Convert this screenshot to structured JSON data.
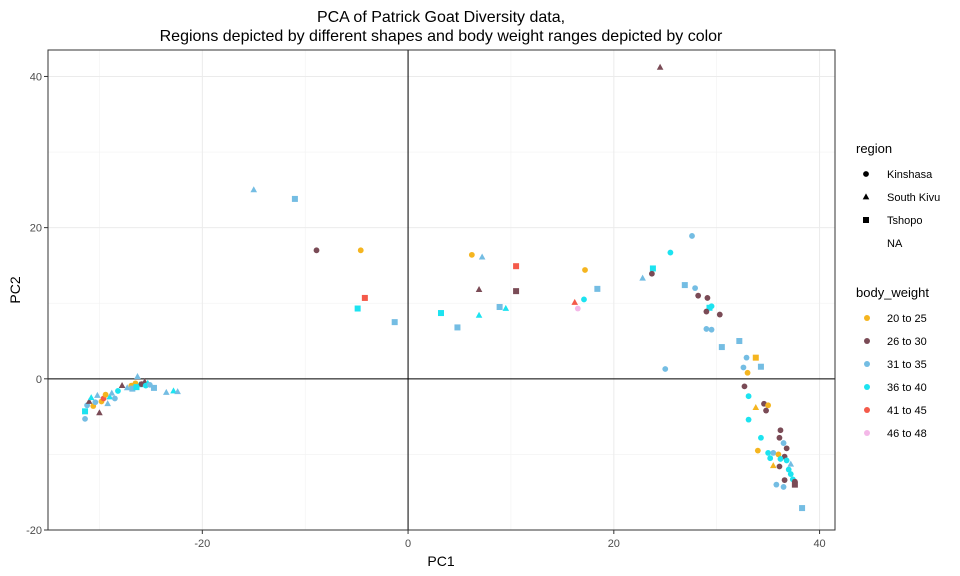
{
  "chart_data": {
    "type": "scatter",
    "title_line1": "PCA of Patrick Goat Diversity data,",
    "title_line2": "Regions depicted by different shapes and body weight ranges depicted by color",
    "xlabel": "PC1",
    "ylabel": "PC2",
    "xlim": [
      -35,
      41.5
    ],
    "ylim": [
      -20,
      43.5
    ],
    "x_ticks": [
      -20,
      0,
      20,
      40
    ],
    "y_ticks": [
      -20,
      0,
      20,
      40
    ],
    "x_tick_labels": [
      "-20",
      "0",
      "20",
      "40"
    ],
    "y_tick_labels": [
      "-20",
      "0",
      "20",
      "40"
    ],
    "grid": true,
    "reference_lines": {
      "x": 0,
      "y": 0
    },
    "legend_position": "right",
    "legend_region": {
      "title": "region",
      "entries": [
        {
          "label": "Kinshasa",
          "shape": "circle"
        },
        {
          "label": "South Kivu",
          "shape": "triangle"
        },
        {
          "label": "Tshopo",
          "shape": "square"
        },
        {
          "label": "NA",
          "shape": "none"
        }
      ]
    },
    "legend_weight": {
      "title": "body_weight",
      "entries": [
        {
          "label": "20 to 25",
          "color": "#f5b51f"
        },
        {
          "label": "26 to 30",
          "color": "#7a4b56"
        },
        {
          "label": "31 to 35",
          "color": "#74bde3"
        },
        {
          "label": "36 to 40",
          "color": "#1ce3f0"
        },
        {
          "label": "41 to 45",
          "color": "#f45a4a"
        },
        {
          "label": "46 to 48",
          "color": "#f4b8e8"
        }
      ]
    },
    "points": [
      [
        24.5,
        41.2,
        "South Kivu",
        "26 to 30"
      ],
      [
        -15,
        25,
        "South Kivu",
        "31 to 35"
      ],
      [
        -11,
        23.8,
        "Tshopo",
        "31 to 35"
      ],
      [
        -8.9,
        17,
        "Kinshasa",
        "26 to 30"
      ],
      [
        -4.6,
        17,
        "Kinshasa",
        "20 to 25"
      ],
      [
        -4.2,
        10.7,
        "Tshopo",
        "41 to 45"
      ],
      [
        -4.9,
        9.3,
        "Tshopo",
        "36 to 40"
      ],
      [
        -1.3,
        7.5,
        "Tshopo",
        "31 to 35"
      ],
      [
        6.2,
        16.4,
        "Kinshasa",
        "20 to 25"
      ],
      [
        7.2,
        16.1,
        "South Kivu",
        "31 to 35"
      ],
      [
        10.5,
        14.9,
        "Tshopo",
        "41 to 45"
      ],
      [
        17.2,
        14.4,
        "Kinshasa",
        "20 to 25"
      ],
      [
        6.9,
        11.8,
        "South Kivu",
        "26 to 30"
      ],
      [
        10.5,
        11.6,
        "Tshopo",
        "26 to 30"
      ],
      [
        18.4,
        11.9,
        "Tshopo",
        "31 to 35"
      ],
      [
        3.2,
        8.7,
        "Tshopo",
        "36 to 40"
      ],
      [
        6.9,
        8.4,
        "South Kivu",
        "36 to 40"
      ],
      [
        8.9,
        9.5,
        "Tshopo",
        "31 to 35"
      ],
      [
        9.5,
        9.3,
        "South Kivu",
        "36 to 40"
      ],
      [
        16.2,
        10.1,
        "South Kivu",
        "41 to 45"
      ],
      [
        16.5,
        9.3,
        "Kinshasa",
        "46 to 48"
      ],
      [
        17.1,
        10.5,
        "Kinshasa",
        "36 to 40"
      ],
      [
        4.8,
        6.8,
        "Tshopo",
        "31 to 35"
      ],
      [
        27.6,
        18.9,
        "Kinshasa",
        "31 to 35"
      ],
      [
        25.5,
        16.7,
        "Kinshasa",
        "36 to 40"
      ],
      [
        23.8,
        14.6,
        "Tshopo",
        "36 to 40"
      ],
      [
        22.8,
        13.3,
        "South Kivu",
        "31 to 35"
      ],
      [
        23.7,
        13.9,
        "Kinshasa",
        "26 to 30"
      ],
      [
        26.9,
        12.4,
        "Tshopo",
        "31 to 35"
      ],
      [
        27.9,
        12,
        "Kinshasa",
        "31 to 35"
      ],
      [
        28.2,
        11,
        "Kinshasa",
        "26 to 30"
      ],
      [
        29.1,
        10.7,
        "Kinshasa",
        "26 to 30"
      ],
      [
        29.3,
        9.4,
        "Tshopo",
        "36 to 40"
      ],
      [
        29.5,
        9.6,
        "Kinshasa",
        "36 to 40"
      ],
      [
        29,
        8.9,
        "Kinshasa",
        "26 to 30"
      ],
      [
        30.3,
        8.5,
        "Kinshasa",
        "26 to 30"
      ],
      [
        29,
        6.6,
        "Kinshasa",
        "31 to 35"
      ],
      [
        29.5,
        6.5,
        "Kinshasa",
        "31 to 35"
      ],
      [
        30.5,
        4.2,
        "Tshopo",
        "31 to 35"
      ],
      [
        32.2,
        5,
        "Tshopo",
        "31 to 35"
      ],
      [
        33.8,
        2.8,
        "Tshopo",
        "20 to 25"
      ],
      [
        32.9,
        2.8,
        "Kinshasa",
        "31 to 35"
      ],
      [
        34.3,
        1.6,
        "Tshopo",
        "31 to 35"
      ],
      [
        32.6,
        1.5,
        "Kinshasa",
        "31 to 35"
      ],
      [
        33,
        0.8,
        "Kinshasa",
        "20 to 25"
      ],
      [
        25,
        1.3,
        "Kinshasa",
        "31 to 35"
      ],
      [
        32.7,
        -1,
        "Kinshasa",
        "26 to 30"
      ],
      [
        33.1,
        -2.3,
        "Kinshasa",
        "36 to 40"
      ],
      [
        34.6,
        -3.3,
        "Kinshasa",
        "26 to 30"
      ],
      [
        35,
        -3.5,
        "Kinshasa",
        "20 to 25"
      ],
      [
        33.8,
        -3.8,
        "South Kivu",
        "20 to 25"
      ],
      [
        34.8,
        -4.2,
        "Kinshasa",
        "26 to 30"
      ],
      [
        33.1,
        -5.4,
        "Kinshasa",
        "36 to 40"
      ],
      [
        36.2,
        -6.8,
        "Kinshasa",
        "26 to 30"
      ],
      [
        34.3,
        -7.8,
        "Kinshasa",
        "36 to 40"
      ],
      [
        36.1,
        -7.8,
        "Kinshasa",
        "26 to 30"
      ],
      [
        36.5,
        -8.5,
        "Kinshasa",
        "31 to 35"
      ],
      [
        36.8,
        -9.2,
        "Kinshasa",
        "26 to 30"
      ],
      [
        34,
        -9.5,
        "Kinshasa",
        "20 to 25"
      ],
      [
        35,
        -9.8,
        "Kinshasa",
        "36 to 40"
      ],
      [
        35.5,
        -9.8,
        "Kinshasa",
        "31 to 35"
      ],
      [
        36,
        -10,
        "Kinshasa",
        "20 to 25"
      ],
      [
        36.6,
        -10.3,
        "Kinshasa",
        "26 to 30"
      ],
      [
        35.2,
        -10.5,
        "Kinshasa",
        "36 to 40"
      ],
      [
        36.2,
        -10.6,
        "Kinshasa",
        "36 to 40"
      ],
      [
        36.8,
        -10.8,
        "Kinshasa",
        "36 to 40"
      ],
      [
        37.2,
        -11.3,
        "South Kivu",
        "31 to 35"
      ],
      [
        35.5,
        -11.5,
        "South Kivu",
        "20 to 25"
      ],
      [
        36.1,
        -11.6,
        "Kinshasa",
        "26 to 30"
      ],
      [
        37,
        -12,
        "Kinshasa",
        "36 to 40"
      ],
      [
        37.2,
        -12.6,
        "Kinshasa",
        "36 to 40"
      ],
      [
        37.4,
        -13.3,
        "Kinshasa",
        "36 to 40"
      ],
      [
        36.6,
        -13.4,
        "Kinshasa",
        "26 to 30"
      ],
      [
        37.6,
        -13.6,
        "Kinshasa",
        "26 to 30"
      ],
      [
        37.6,
        -14,
        "Tshopo",
        "26 to 30"
      ],
      [
        35.8,
        -14,
        "Kinshasa",
        "31 to 35"
      ],
      [
        36.5,
        -14.3,
        "Kinshasa",
        "31 to 35"
      ],
      [
        38.3,
        -17.1,
        "Tshopo",
        "31 to 35"
      ],
      [
        -31.4,
        -5.3,
        "Kinshasa",
        "31 to 35"
      ],
      [
        -31.4,
        -4.3,
        "Tshopo",
        "36 to 40"
      ],
      [
        -31.2,
        -3.5,
        "Kinshasa",
        "31 to 35"
      ],
      [
        -31,
        -3,
        "South Kivu",
        "26 to 30"
      ],
      [
        -30.8,
        -2.5,
        "South Kivu",
        "36 to 40"
      ],
      [
        -30.6,
        -3.6,
        "Kinshasa",
        "20 to 25"
      ],
      [
        -30.4,
        -3.1,
        "Kinshasa",
        "31 to 35"
      ],
      [
        -30.2,
        -2.2,
        "South Kivu",
        "31 to 35"
      ],
      [
        -30,
        -4.5,
        "South Kivu",
        "26 to 30"
      ],
      [
        -29.8,
        -3,
        "Kinshasa",
        "20 to 25"
      ],
      [
        -29.6,
        -2.6,
        "Kinshasa",
        "41 to 45"
      ],
      [
        -29.4,
        -2.1,
        "Kinshasa",
        "20 to 25"
      ],
      [
        -29.2,
        -3.3,
        "South Kivu",
        "31 to 35"
      ],
      [
        -29,
        -2.4,
        "South Kivu",
        "36 to 40"
      ],
      [
        -28.8,
        -1.9,
        "South Kivu",
        "31 to 35"
      ],
      [
        -28.5,
        -2.6,
        "Kinshasa",
        "31 to 35"
      ],
      [
        -28.2,
        -1.6,
        "Kinshasa",
        "36 to 40"
      ],
      [
        -27.8,
        -0.9,
        "South Kivu",
        "26 to 30"
      ],
      [
        -27.3,
        -1.2,
        "South Kivu",
        "31 to 35"
      ],
      [
        -26.9,
        -0.9,
        "Kinshasa",
        "20 to 25"
      ],
      [
        -26.5,
        -0.6,
        "Kinshasa",
        "20 to 25"
      ],
      [
        -26.8,
        -1.3,
        "Tshopo",
        "31 to 35"
      ],
      [
        -26.4,
        -1.1,
        "Tshopo",
        "36 to 40"
      ],
      [
        -26.1,
        -0.8,
        "South Kivu",
        "36 to 40"
      ],
      [
        -26.3,
        0.3,
        "South Kivu",
        "31 to 35"
      ],
      [
        -25.9,
        -0.7,
        "Kinshasa",
        "26 to 30"
      ],
      [
        -25.6,
        -0.4,
        "South Kivu",
        "26 to 30"
      ],
      [
        -25.5,
        -0.9,
        "Kinshasa",
        "36 to 40"
      ],
      [
        -25.3,
        -0.6,
        "South Kivu",
        "36 to 40"
      ],
      [
        -25.1,
        -0.8,
        "Kinshasa",
        "31 to 35"
      ],
      [
        -24.7,
        -1.2,
        "Tshopo",
        "31 to 35"
      ],
      [
        -23.5,
        -1.8,
        "South Kivu",
        "31 to 35"
      ],
      [
        -22.8,
        -1.6,
        "South Kivu",
        "36 to 40"
      ],
      [
        -22.4,
        -1.7,
        "South Kivu",
        "31 to 35"
      ]
    ]
  }
}
